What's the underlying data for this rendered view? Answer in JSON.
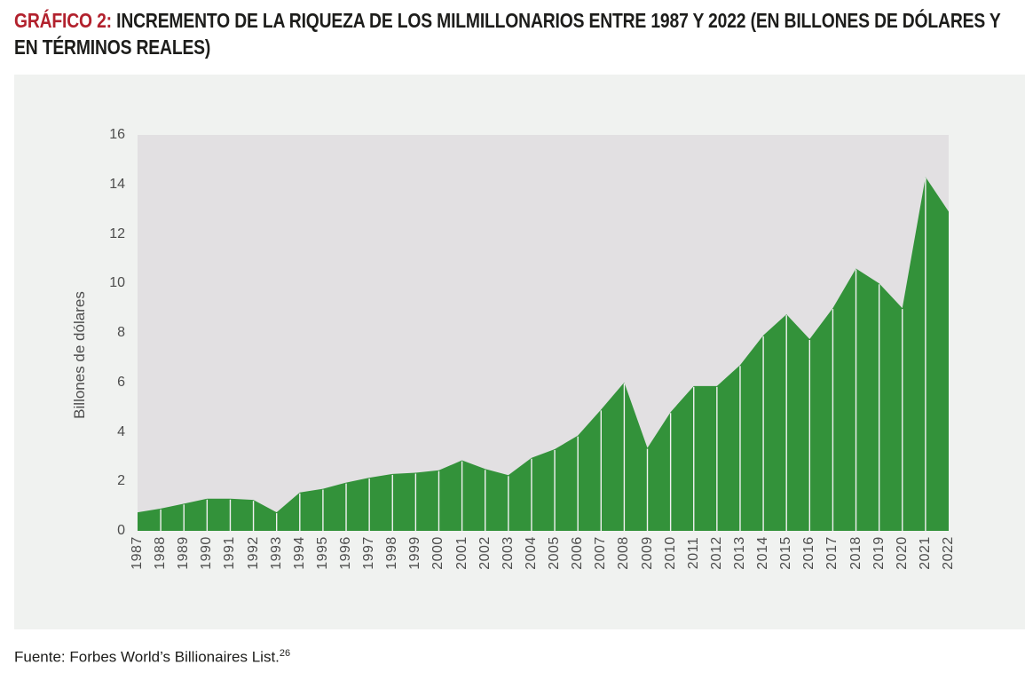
{
  "title": {
    "prefix": "GRÁFICO 2:",
    "line1_rest": " INCREMENTO DE LA RIQUEZA DE LOS MILMILLONARIOS ENTRE 1987 Y 2022 (EN BILLONES DE DÓLARES Y",
    "line2": "EN TÉRMINOS REALES)"
  },
  "chart_data": {
    "type": "area",
    "x": [
      1987,
      1988,
      1989,
      1990,
      1991,
      1992,
      1993,
      1994,
      1995,
      1996,
      1997,
      1998,
      1999,
      2000,
      2001,
      2002,
      2003,
      2004,
      2005,
      2006,
      2007,
      2008,
      2009,
      2010,
      2011,
      2012,
      2013,
      2014,
      2015,
      2016,
      2017,
      2018,
      2019,
      2020,
      2021,
      2022
    ],
    "values": [
      0.75,
      0.9,
      1.1,
      1.3,
      1.3,
      1.25,
      0.75,
      1.55,
      1.7,
      1.95,
      2.15,
      2.3,
      2.35,
      2.45,
      2.85,
      2.5,
      2.25,
      2.95,
      3.3,
      3.85,
      4.9,
      6.0,
      3.35,
      4.8,
      5.85,
      5.85,
      6.7,
      7.9,
      8.75,
      7.75,
      9.0,
      10.6,
      10.0,
      9.0,
      14.3,
      12.9
    ],
    "ylabel": "Billones de dólares",
    "yticks": [
      0,
      2,
      4,
      6,
      8,
      10,
      12,
      14,
      16
    ],
    "ylim": [
      0,
      16
    ],
    "x_range": [
      1987,
      2022
    ],
    "grid": false,
    "legend": "none",
    "colors": {
      "area": "#33923a",
      "plot_bg": "#e2e0e2",
      "panel_bg": "#f0f2f0",
      "separator_lines": "#f2f1f2",
      "title_accent": "#b2212d",
      "title_text": "#1d1d1b",
      "axis_text": "#4d4d4d"
    }
  },
  "footer": {
    "text": "Fuente: Forbes World’s Billionaires List.",
    "superscript": "26"
  }
}
